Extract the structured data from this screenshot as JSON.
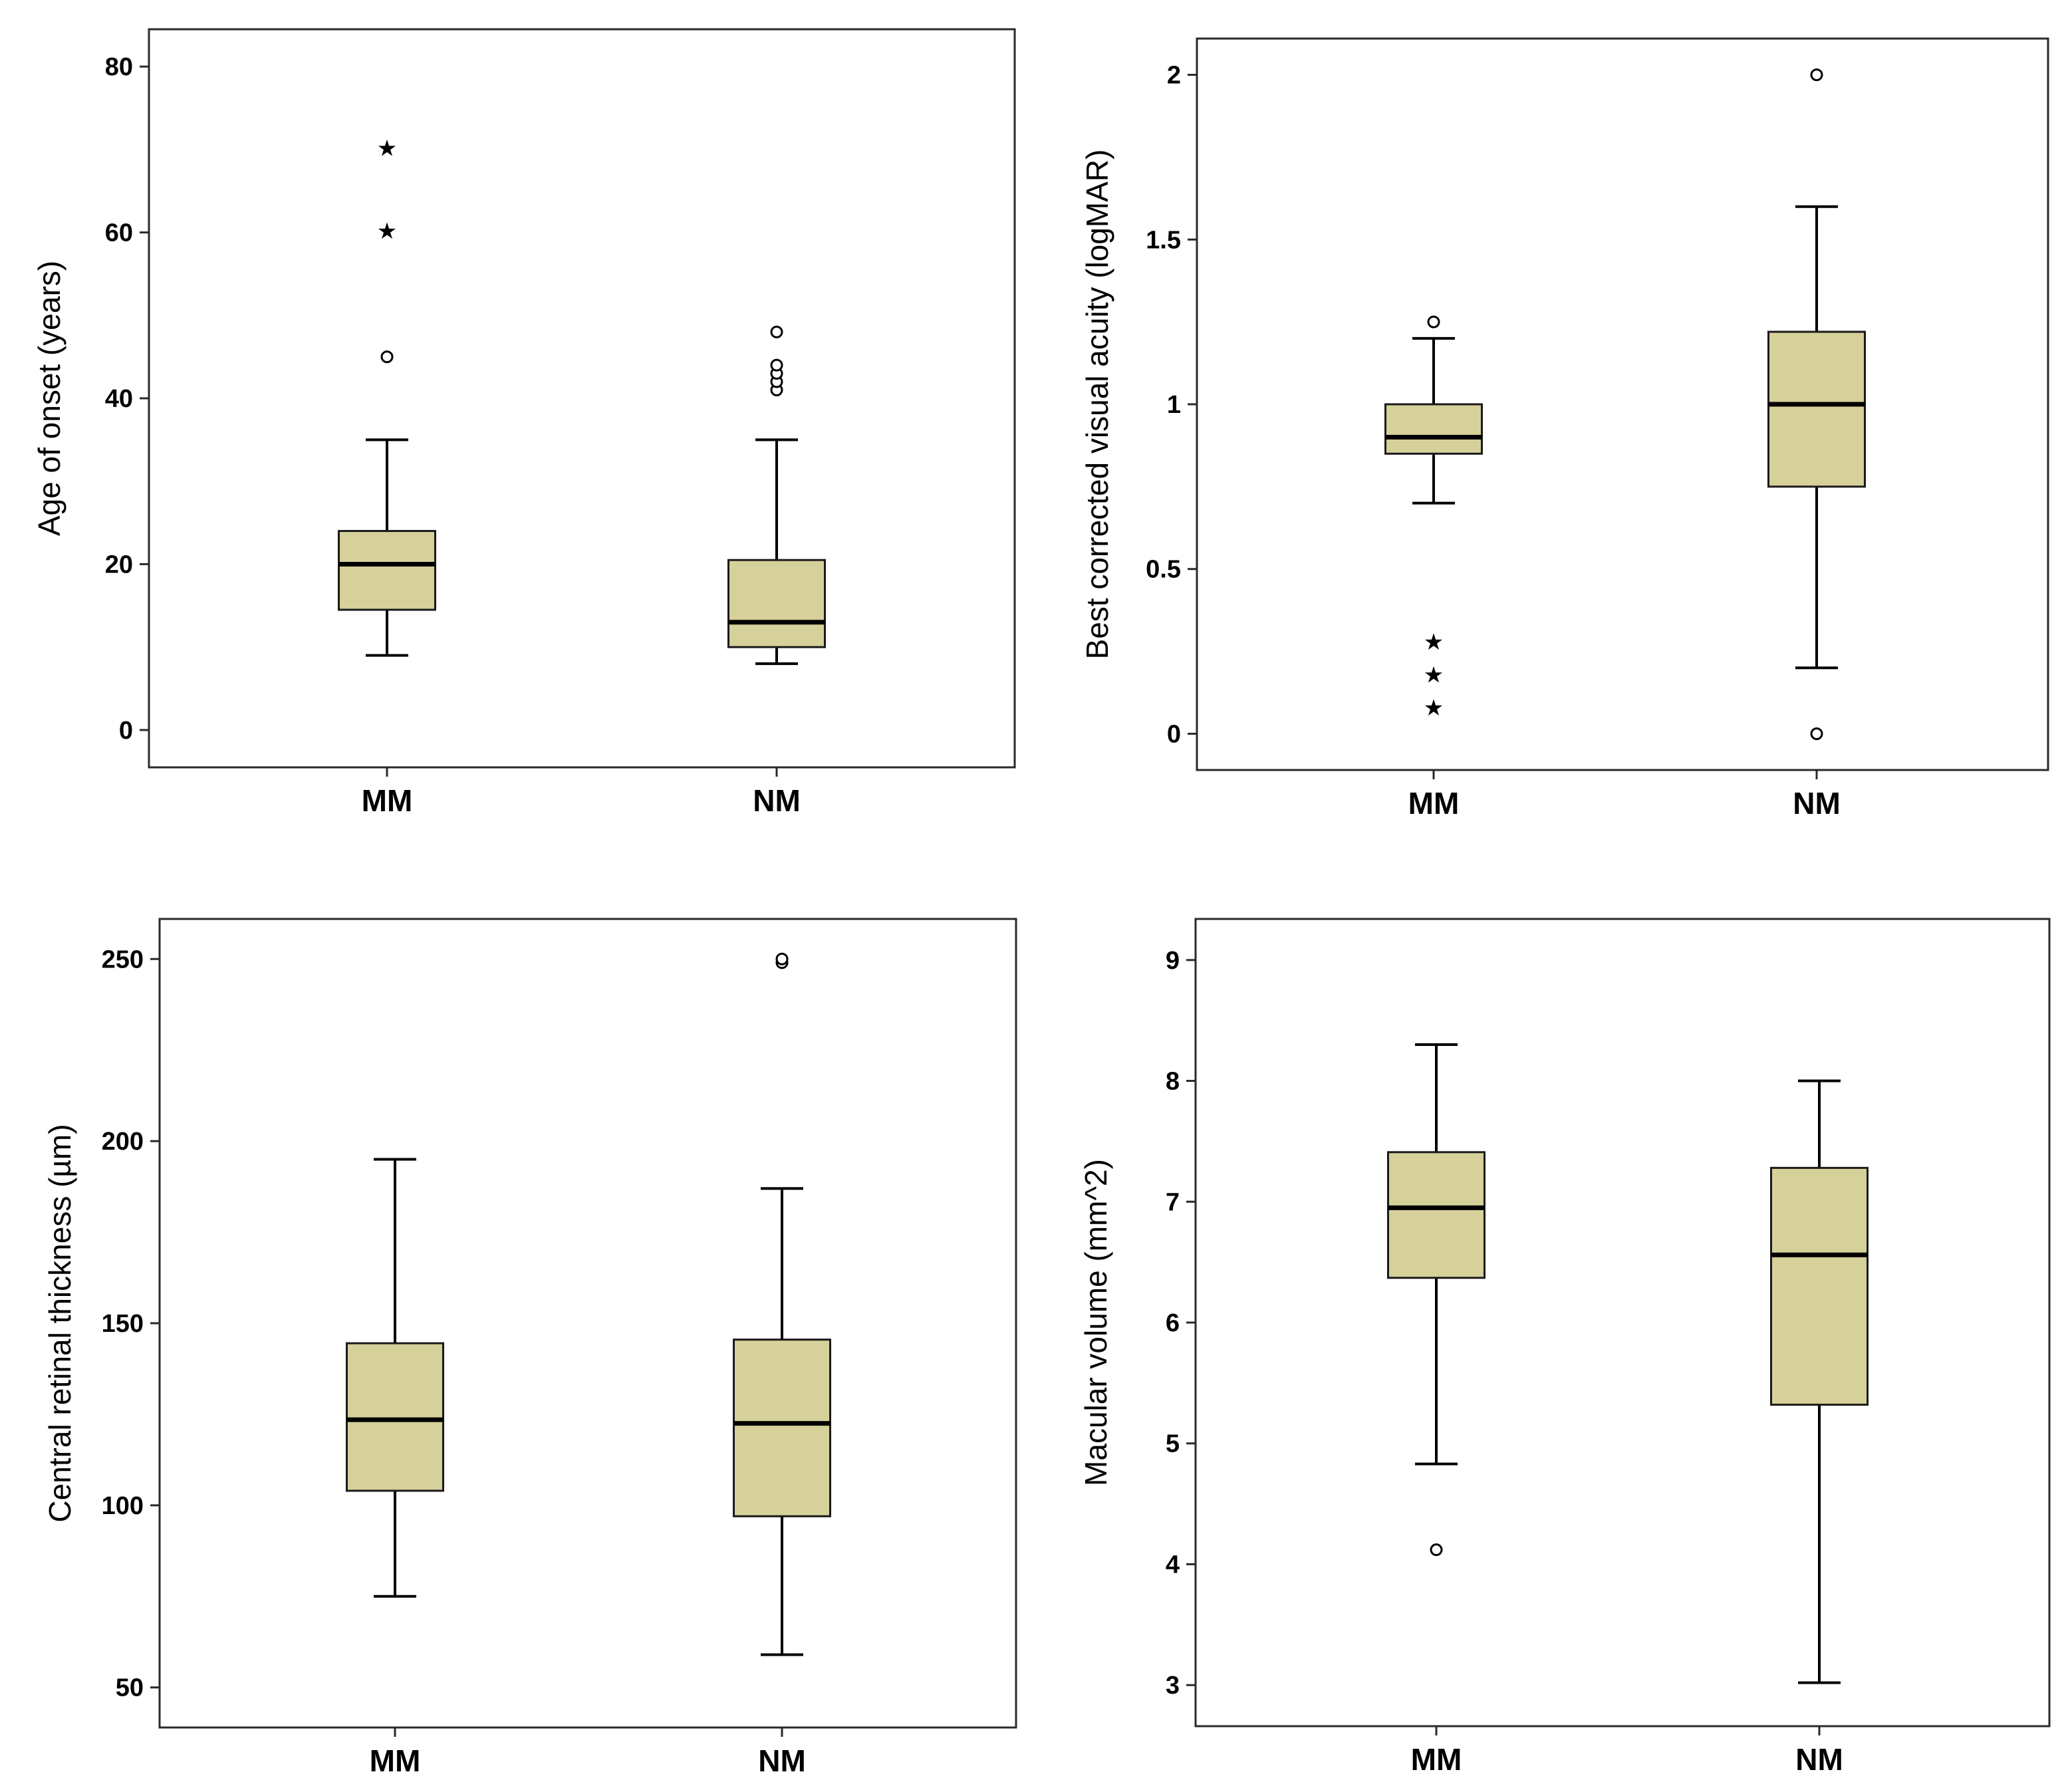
{
  "colors": {
    "box_fill": "#d6d09a",
    "stroke": "#000000",
    "background": "#ffffff"
  },
  "chart_data": [
    {
      "type": "boxplot",
      "title": "",
      "ylabel": "Age of onset (years)",
      "xlabel": "",
      "categories": [
        "MM",
        "NM"
      ],
      "ylim": [
        -4.5,
        84.5
      ],
      "yticks": [
        0,
        20,
        40,
        60,
        80
      ],
      "ytick_labels": [
        "0",
        "20",
        "40",
        "60",
        "80"
      ],
      "boxes": [
        {
          "name": "MM",
          "whisker_low": 9,
          "q1": 14.5,
          "median": 20,
          "q3": 24,
          "whisker_high": 35,
          "outliers": [
            45
          ],
          "extremes": [
            61,
            71
          ]
        },
        {
          "name": "NM",
          "whisker_low": 8,
          "q1": 10,
          "median": 13,
          "q3": 20.5,
          "whisker_high": 35,
          "outliers": [
            41,
            42,
            43,
            44,
            48
          ],
          "extremes": []
        }
      ]
    },
    {
      "type": "boxplot",
      "title": "",
      "ylabel": "Best corrected visual acuity (logMAR)",
      "xlabel": "",
      "categories": [
        "MM",
        "NM"
      ],
      "ylim": [
        -0.11,
        2.11
      ],
      "yticks": [
        0,
        0.5,
        1,
        1.5,
        2
      ],
      "ytick_labels": [
        "0",
        "0.5",
        "1",
        "1.5",
        "2"
      ],
      "boxes": [
        {
          "name": "MM",
          "whisker_low": 0.7,
          "q1": 0.85,
          "median": 0.9,
          "q3": 1.0,
          "whisker_high": 1.2,
          "outliers": [
            1.25
          ],
          "extremes": [
            0.1,
            0.2,
            0.3
          ]
        },
        {
          "name": "NM",
          "whisker_low": 0.2,
          "q1": 0.75,
          "median": 1.0,
          "q3": 1.22,
          "whisker_high": 1.6,
          "outliers": [
            0,
            2
          ],
          "extremes": []
        }
      ]
    },
    {
      "type": "boxplot",
      "title": "",
      "ylabel": "Central retinal thickness (µm)",
      "xlabel": "",
      "categories": [
        "MM",
        "NM"
      ],
      "ylim": [
        39,
        261
      ],
      "yticks": [
        50,
        100,
        150,
        200,
        250
      ],
      "ytick_labels": [
        "50",
        "100",
        "150",
        "200",
        "250"
      ],
      "boxes": [
        {
          "name": "MM",
          "whisker_low": 75,
          "q1": 104,
          "median": 123.5,
          "q3": 144.5,
          "whisker_high": 195,
          "outliers": [],
          "extremes": []
        },
        {
          "name": "NM",
          "whisker_low": 59,
          "q1": 97,
          "median": 122.5,
          "q3": 145.5,
          "whisker_high": 187,
          "outliers": [
            249,
            250
          ],
          "extremes": []
        }
      ]
    },
    {
      "type": "boxplot",
      "title": "",
      "ylabel": "Macular volume (mm^2)",
      "xlabel": "",
      "categories": [
        "MM",
        "NM"
      ],
      "ylim": [
        2.66,
        9.34
      ],
      "yticks": [
        3,
        4,
        5,
        6,
        7,
        8,
        9
      ],
      "ytick_labels": [
        "3",
        "4",
        "5",
        "6",
        "7",
        "8",
        "9"
      ],
      "boxes": [
        {
          "name": "MM",
          "whisker_low": 4.83,
          "q1": 6.37,
          "median": 6.95,
          "q3": 7.41,
          "whisker_high": 8.3,
          "outliers": [
            4.12
          ],
          "extremes": []
        },
        {
          "name": "NM",
          "whisker_low": 3.02,
          "q1": 5.32,
          "median": 6.56,
          "q3": 7.28,
          "whisker_high": 8.0,
          "outliers": [],
          "extremes": []
        }
      ]
    }
  ]
}
